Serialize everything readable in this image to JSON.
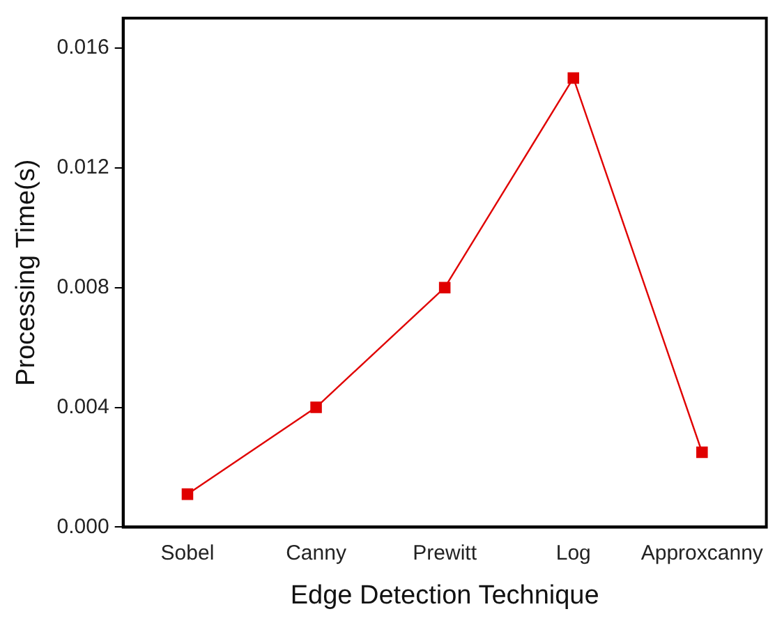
{
  "chart_data": {
    "type": "line",
    "xlabel": "Edge Detection Technique",
    "ylabel": "Processing Time(s)",
    "categories": [
      "Sobel",
      "Canny",
      "Prewitt",
      "Log",
      "Approxcanny"
    ],
    "series": [
      {
        "color": "#e00000",
        "values": [
          0.0011,
          0.004,
          0.008,
          0.015,
          0.0025
        ]
      }
    ],
    "ylim": [
      0,
      0.017
    ],
    "yticks": [
      {
        "value": 0,
        "label": "0.000"
      },
      {
        "value": 0.004,
        "label": "0.004"
      },
      {
        "value": 0.008,
        "label": "0.008"
      },
      {
        "value": 0.012,
        "label": "0.012"
      },
      {
        "value": 0.016,
        "label": "0.016"
      }
    ],
    "grid": false,
    "legend": false,
    "marker": "square",
    "line_style": "solid"
  }
}
